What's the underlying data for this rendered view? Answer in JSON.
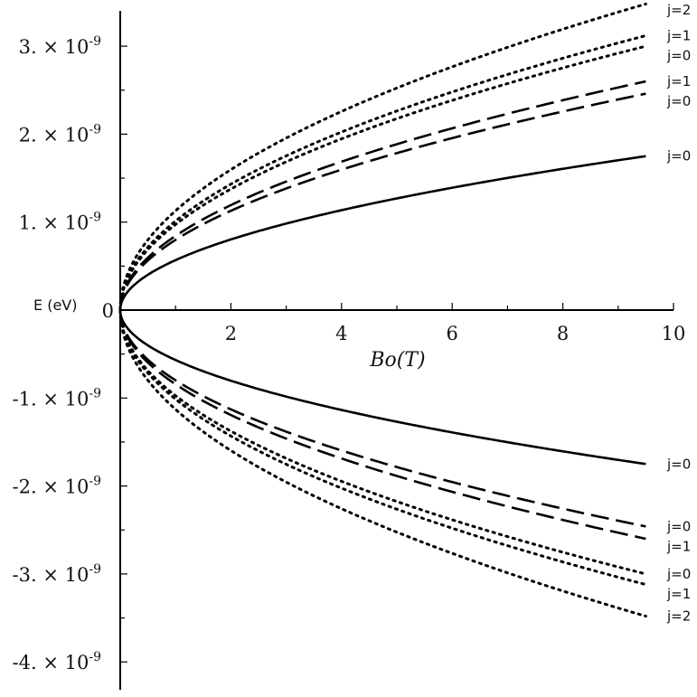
{
  "chart_data": {
    "type": "line",
    "xlabel": "Bo(T)",
    "ylabel": "E (eV)",
    "xlim": [
      0,
      10
    ],
    "ylim": [
      -4.2e-09,
      3.45e-09
    ],
    "x_ticks": [
      {
        "value": 2,
        "label": "2"
      },
      {
        "value": 4,
        "label": "4"
      },
      {
        "value": 6,
        "label": "6"
      },
      {
        "value": 8,
        "label": "8"
      },
      {
        "value": 10,
        "label": "10"
      }
    ],
    "origin_label": "0",
    "y_ticks": [
      {
        "value": 3e-09,
        "mantissa": "3. × 10",
        "exponent": "-9"
      },
      {
        "value": 2e-09,
        "mantissa": "2. × 10",
        "exponent": "-9"
      },
      {
        "value": 1e-09,
        "mantissa": "1. × 10",
        "exponent": "-9"
      },
      {
        "value": -1e-09,
        "mantissa": "-1. × 10",
        "exponent": "-9"
      },
      {
        "value": -2e-09,
        "mantissa": "-2. × 10",
        "exponent": "-9"
      },
      {
        "value": -3e-09,
        "mantissa": "-3. × 10",
        "exponent": "-9"
      },
      {
        "value": -4e-09,
        "mantissa": "-4. × 10",
        "exponent": "-9"
      }
    ],
    "grid": false,
    "series": [
      {
        "label": "j=0",
        "style": "solid",
        "x": [
          0,
          0.5,
          1,
          2,
          3,
          4,
          5,
          6,
          7,
          8,
          9,
          9.5
        ],
        "y": [
          0,
          4e-10,
          5.7e-10,
          8e-10,
          9.8e-10,
          1.13e-09,
          1.27e-09,
          1.39e-09,
          1.5e-09,
          1.61e-09,
          1.7e-09,
          1.75e-09
        ]
      },
      {
        "label": "j=0",
        "style": "dashed",
        "x": [
          0,
          0.5,
          1,
          2,
          3,
          4,
          5,
          6,
          7,
          8,
          9,
          9.5
        ],
        "y": [
          0,
          5.6e-10,
          8e-10,
          1.13e-09,
          1.38e-09,
          1.6e-09,
          1.79e-09,
          1.96e-09,
          2.11e-09,
          2.26e-09,
          2.4e-09,
          2.46e-09
        ]
      },
      {
        "label": "j=1",
        "style": "dashed",
        "x": [
          0,
          0.5,
          1,
          2,
          3,
          4,
          5,
          6,
          7,
          8,
          9,
          9.5
        ],
        "y": [
          0,
          6e-10,
          8.5e-10,
          1.2e-09,
          1.46e-09,
          1.69e-09,
          1.89e-09,
          2.07e-09,
          2.24e-09,
          2.39e-09,
          2.54e-09,
          2.6e-09
        ]
      },
      {
        "label": "j=0",
        "style": "dotted",
        "x": [
          0,
          0.5,
          1,
          2,
          3,
          4,
          5,
          6,
          7,
          8,
          9,
          9.5
        ],
        "y": [
          0,
          6.9e-10,
          9.7e-10,
          1.38e-09,
          1.69e-09,
          1.95e-09,
          2.18e-09,
          2.39e-09,
          2.58e-09,
          2.76e-09,
          2.93e-09,
          3e-09
        ]
      },
      {
        "label": "j=1",
        "style": "dotted",
        "x": [
          0,
          0.5,
          1,
          2,
          3,
          4,
          5,
          6,
          7,
          8,
          9,
          9.5
        ],
        "y": [
          0,
          7.2e-10,
          1.02e-09,
          1.44e-09,
          1.76e-09,
          2.03e-09,
          2.27e-09,
          2.49e-09,
          2.69e-09,
          2.88e-09,
          3.05e-09,
          3.12e-09
        ]
      },
      {
        "label": "j=2",
        "style": "dotted",
        "x": [
          0,
          0.5,
          1,
          2,
          3,
          4,
          5,
          6,
          7,
          8,
          9,
          9.5
        ],
        "y": [
          0,
          8e-10,
          1.13e-09,
          1.6e-09,
          1.96e-09,
          2.26e-09,
          2.53e-09,
          2.77e-09,
          2.99e-09,
          3.2e-09,
          3.39e-09,
          3.48e-09
        ]
      },
      {
        "label": "j=0",
        "style": "solid",
        "x": [
          0,
          0.5,
          1,
          2,
          3,
          4,
          5,
          6,
          7,
          8,
          9,
          9.5
        ],
        "y": [
          0,
          -4e-10,
          -5.7e-10,
          -8e-10,
          -9.8e-10,
          -1.13e-09,
          -1.27e-09,
          -1.39e-09,
          -1.5e-09,
          -1.61e-09,
          -1.7e-09,
          -1.75e-09
        ]
      },
      {
        "label": "j=0",
        "style": "dashed",
        "x": [
          0,
          0.5,
          1,
          2,
          3,
          4,
          5,
          6,
          7,
          8,
          9,
          9.5
        ],
        "y": [
          0,
          -5.6e-10,
          -8e-10,
          -1.13e-09,
          -1.38e-09,
          -1.6e-09,
          -1.79e-09,
          -1.96e-09,
          -2.11e-09,
          -2.26e-09,
          -2.4e-09,
          -2.46e-09
        ]
      },
      {
        "label": "j=1",
        "style": "dashed",
        "x": [
          0,
          0.5,
          1,
          2,
          3,
          4,
          5,
          6,
          7,
          8,
          9,
          9.5
        ],
        "y": [
          0,
          -6e-10,
          -8.5e-10,
          -1.2e-09,
          -1.46e-09,
          -1.69e-09,
          -1.89e-09,
          -2.07e-09,
          -2.24e-09,
          -2.39e-09,
          -2.54e-09,
          -2.6e-09
        ]
      },
      {
        "label": "j=0",
        "style": "dotted",
        "x": [
          0,
          0.5,
          1,
          2,
          3,
          4,
          5,
          6,
          7,
          8,
          9,
          9.5
        ],
        "y": [
          0,
          -6.9e-10,
          -9.7e-10,
          -1.38e-09,
          -1.69e-09,
          -1.95e-09,
          -2.18e-09,
          -2.39e-09,
          -2.58e-09,
          -2.76e-09,
          -2.93e-09,
          -3e-09
        ]
      },
      {
        "label": "j=1",
        "style": "dotted",
        "x": [
          0,
          0.5,
          1,
          2,
          3,
          4,
          5,
          6,
          7,
          8,
          9,
          9.5
        ],
        "y": [
          0,
          -7.2e-10,
          -1.02e-09,
          -1.44e-09,
          -1.76e-09,
          -2.03e-09,
          -2.27e-09,
          -2.49e-09,
          -2.69e-09,
          -2.88e-09,
          -3.05e-09,
          -3.12e-09
        ]
      },
      {
        "label": "j=2",
        "style": "dotted",
        "x": [
          0,
          0.5,
          1,
          2,
          3,
          4,
          5,
          6,
          7,
          8,
          9,
          9.5
        ],
        "y": [
          0,
          -8e-10,
          -1.13e-09,
          -1.6e-09,
          -1.96e-09,
          -2.26e-09,
          -2.53e-09,
          -2.77e-09,
          -2.99e-09,
          -3.2e-09,
          -3.39e-09,
          -3.48e-09
        ]
      }
    ],
    "curve_labels": [
      {
        "text": "j=2",
        "series": 5
      },
      {
        "text": "j=1",
        "series": 4
      },
      {
        "text": "j=0",
        "series": 3
      },
      {
        "text": "j=1",
        "series": 2
      },
      {
        "text": "j=0",
        "series": 1
      },
      {
        "text": "j=0",
        "series": 0
      },
      {
        "text": "j=0",
        "series": 6
      },
      {
        "text": "j=0",
        "series": 7
      },
      {
        "text": "j=1",
        "series": 8
      },
      {
        "text": "j=0",
        "series": 9
      },
      {
        "text": "j=1",
        "series": 10
      },
      {
        "text": "j=2",
        "series": 11
      }
    ]
  }
}
